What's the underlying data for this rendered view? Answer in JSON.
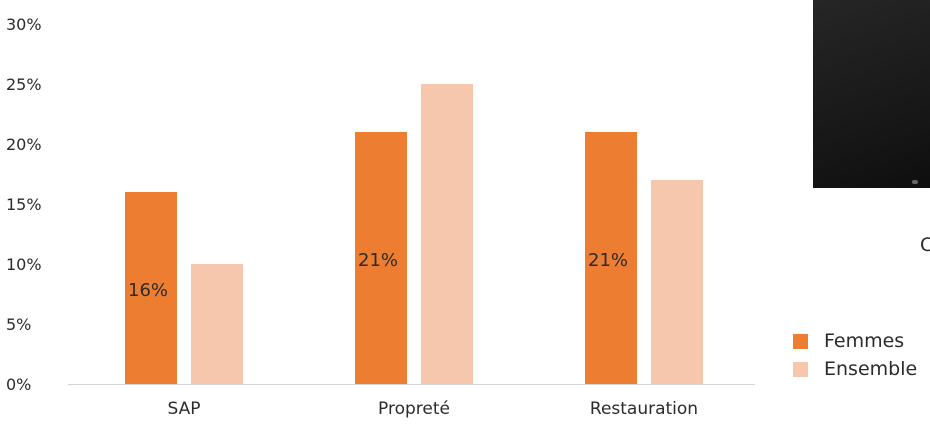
{
  "chart_data": {
    "type": "bar",
    "title": "",
    "xlabel": "",
    "ylabel": "",
    "categories": [
      "SAP",
      "Propreté",
      "Restauration"
    ],
    "series": [
      {
        "name": "Femmes",
        "values": [
          16,
          21,
          21
        ],
        "color": "#ED7D31",
        "labels": [
          "16%",
          "21%",
          "21%"
        ]
      },
      {
        "name": "Ensemble",
        "values": [
          10,
          25,
          17
        ],
        "color": "#F6C6AD",
        "labels": [
          "",
          "",
          ""
        ]
      }
    ],
    "ylim": [
      0,
      30
    ],
    "yticks": [
      0,
      5,
      10,
      15,
      20,
      25,
      30
    ],
    "ytick_labels": [
      "0%",
      "5%",
      "10%",
      "15%",
      "20%",
      "25%",
      "30%"
    ],
    "grid": false,
    "legend_position": "right"
  },
  "side": {
    "partial_glyph": "C"
  }
}
